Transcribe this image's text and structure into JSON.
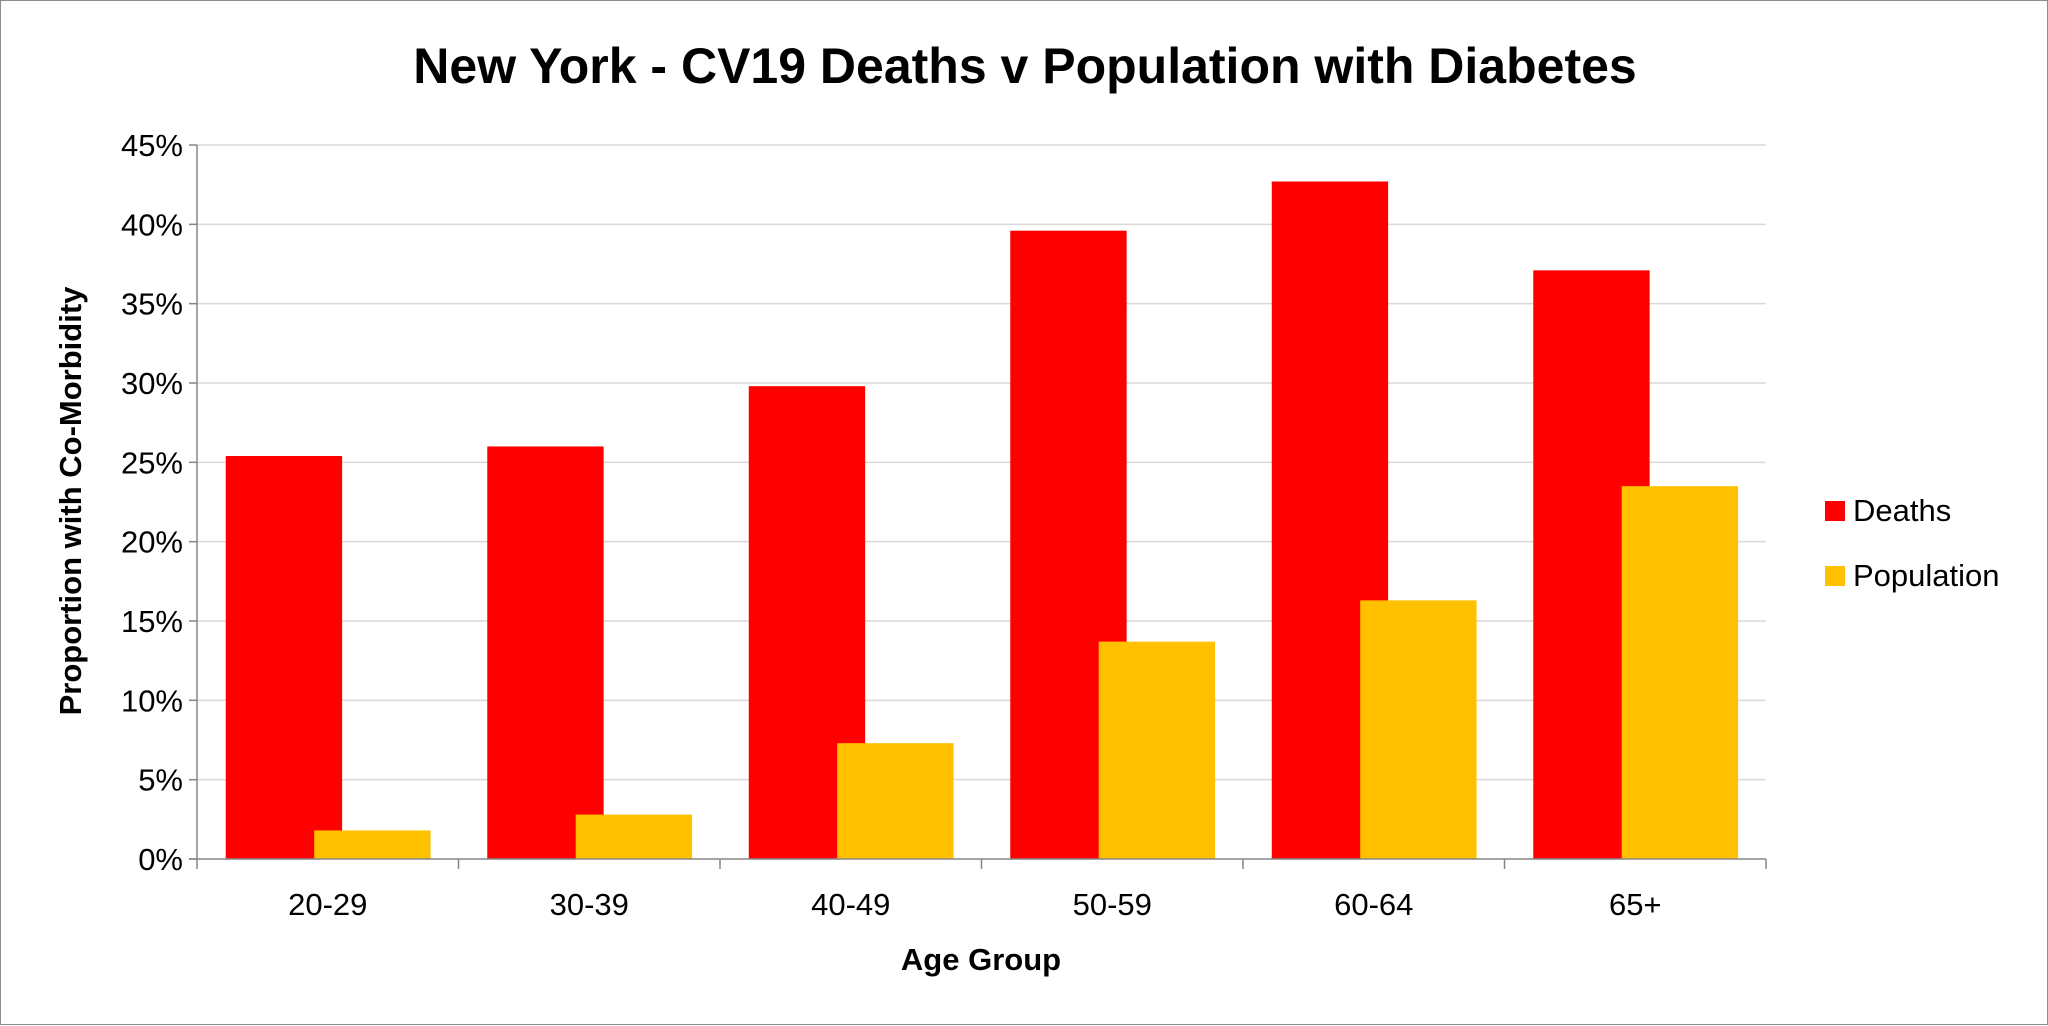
{
  "chart_data": {
    "type": "bar",
    "title": "New York - CV19 Deaths v Population with Diabetes",
    "xlabel": "Age Group",
    "ylabel": "Proportion with Co-Morbidity",
    "categories": [
      "20-29",
      "30-39",
      "40-49",
      "50-59",
      "60-64",
      "65+"
    ],
    "series": [
      {
        "name": "Deaths",
        "color": "#ff0000",
        "values": [
          25.4,
          26.0,
          29.8,
          39.6,
          42.7,
          37.1
        ]
      },
      {
        "name": "Population",
        "color": "#ffc000",
        "values": [
          1.8,
          2.8,
          7.3,
          13.7,
          16.3,
          23.5
        ]
      }
    ],
    "ylim": [
      0,
      45
    ],
    "yticks": [
      0,
      5,
      10,
      15,
      20,
      25,
      30,
      35,
      40,
      45
    ],
    "ytick_suffix": "%",
    "grid": true,
    "legend_position": "right"
  }
}
